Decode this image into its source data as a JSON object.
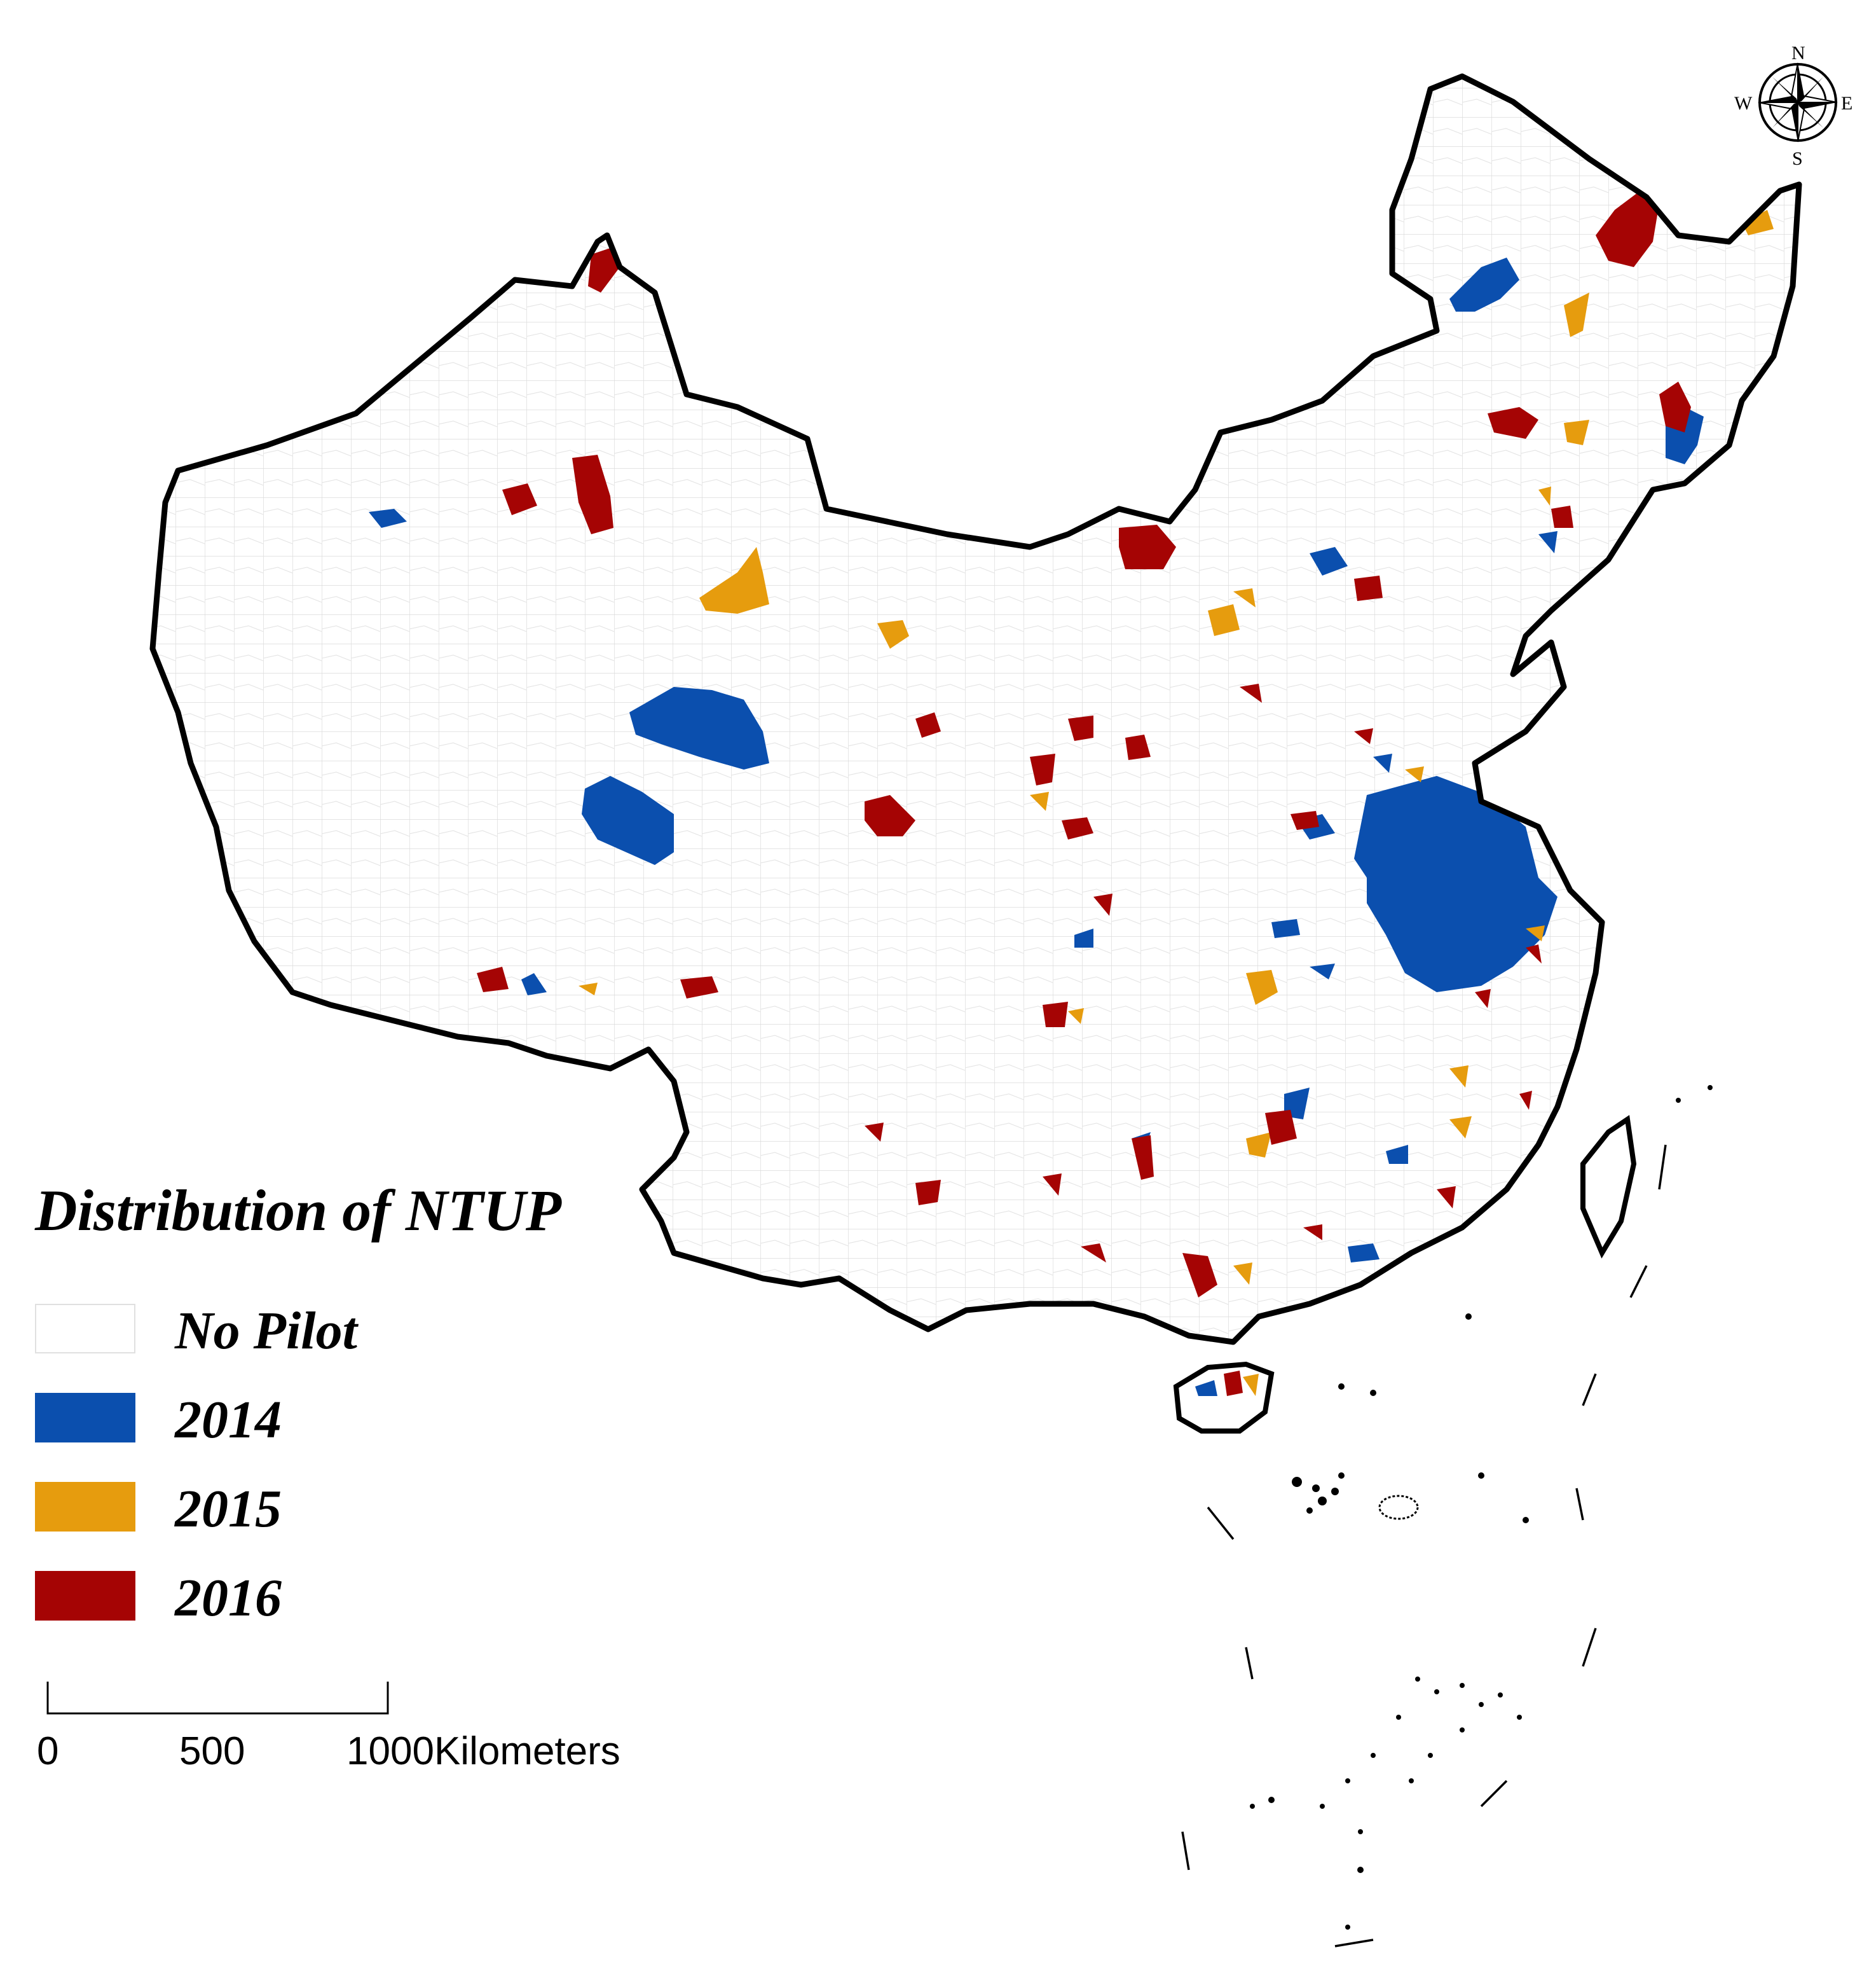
{
  "legend": {
    "title": "Distribution of  NTUP",
    "items": [
      {
        "label": "No Pilot",
        "color": "#ffffff"
      },
      {
        "label": "2014",
        "color": "#0b4fae"
      },
      {
        "label": "2015",
        "color": "#e69c0e"
      },
      {
        "label": "2016",
        "color": "#a50404"
      }
    ]
  },
  "scale_bar": {
    "ticks": [
      "0",
      "500",
      "1000"
    ],
    "unit": "Kilometers"
  },
  "compass": {
    "n": "N",
    "s": "S",
    "e": "E",
    "w": "W"
  }
}
